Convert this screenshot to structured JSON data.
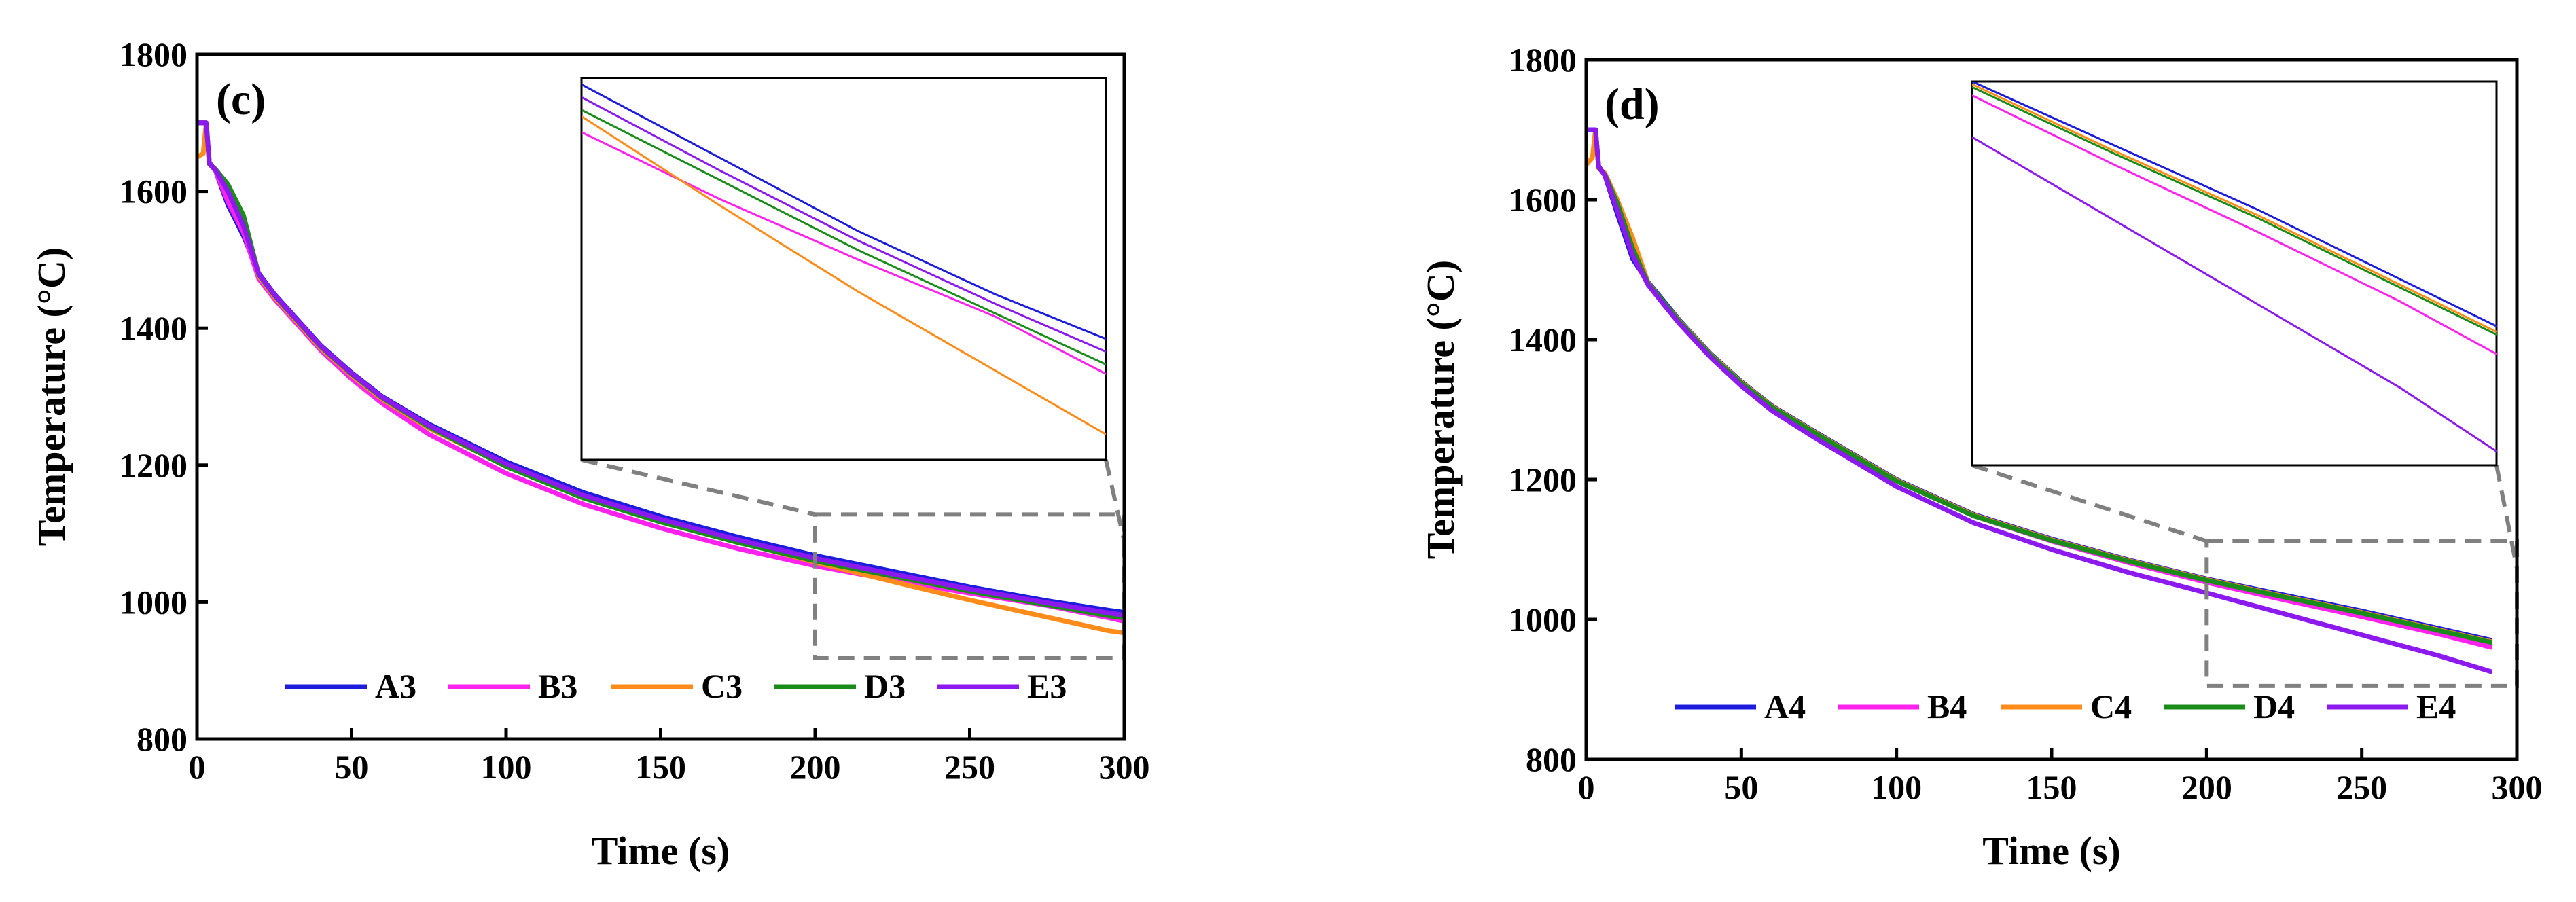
{
  "figure": {
    "chart_data": [
      {
        "type": "line",
        "panel_label": "(c)",
        "title": "",
        "xlabel": "Time (s)",
        "ylabel": "Temperature (°C)",
        "xlim": [
          0,
          300
        ],
        "ylim": [
          800,
          1800
        ],
        "xticks": [
          0,
          50,
          100,
          150,
          200,
          250,
          300
        ],
        "yticks": [
          800,
          1000,
          1200,
          1400,
          1600,
          1800
        ],
        "zoom_box": {
          "x": [
            200,
            300
          ],
          "y": [
            918,
            1128
          ]
        },
        "inset_view": {
          "x": [
            200,
            295
          ],
          "y": [
            950,
            1070
          ]
        },
        "x": [
          0,
          2,
          3,
          4,
          6,
          10,
          15,
          20,
          25,
          30,
          40,
          50,
          60,
          75,
          100,
          125,
          150,
          175,
          200,
          225,
          250,
          275,
          295,
          300
        ],
        "series": [
          {
            "name": "A3",
            "color": "#1c1cdc",
            "values": [
              1700,
              1700,
              1700,
              1642,
              1630,
              1580,
              1535,
              1480,
              1450,
              1425,
              1375,
              1335,
              1300,
              1260,
              1205,
              1160,
              1125,
              1095,
              1068,
              1045,
              1022,
              1002,
              988,
              985
            ]
          },
          {
            "name": "B3",
            "color": "#ff22ee",
            "values": [
              1700,
              1700,
              1700,
              1640,
              1630,
              1585,
              1540,
              1472,
              1443,
              1418,
              1368,
              1326,
              1290,
              1245,
              1188,
              1143,
              1108,
              1078,
              1053,
              1032,
              1013,
              995,
              977,
              972
            ]
          },
          {
            "name": "C3",
            "color": "#ff8c1a",
            "values": [
              1650,
              1655,
              1700,
              1640,
              1632,
              1605,
              1560,
              1476,
              1446,
              1421,
              1371,
              1331,
              1296,
              1254,
              1199,
              1153,
              1118,
              1088,
              1058,
              1030,
              1003,
              978,
              958,
              955
            ]
          },
          {
            "name": "D3",
            "color": "#1a8c1a",
            "values": [
              1700,
              1700,
              1700,
              1640,
              1632,
              1610,
              1565,
              1478,
              1448,
              1423,
              1373,
              1333,
              1298,
              1256,
              1198,
              1152,
              1117,
              1087,
              1060,
              1038,
              1016,
              996,
              980,
              977
            ]
          },
          {
            "name": "E3",
            "color": "#8c1aee",
            "values": [
              1700,
              1700,
              1700,
              1641,
              1631,
              1600,
              1550,
              1479,
              1449,
              1424,
              1374,
              1334,
              1299,
              1258,
              1202,
              1156,
              1121,
              1091,
              1064,
              1041,
              1019,
              999,
              984,
              981
            ]
          }
        ]
      },
      {
        "type": "line",
        "panel_label": "(d)",
        "title": "",
        "xlabel": "Time (s)",
        "ylabel": "Temperature (°C)",
        "xlim": [
          0,
          300
        ],
        "ylim": [
          800,
          1800
        ],
        "xticks": [
          0,
          50,
          100,
          150,
          200,
          250,
          300
        ],
        "yticks": [
          800,
          1000,
          1200,
          1400,
          1600,
          1800
        ],
        "zoom_box": {
          "x": [
            200,
            300
          ],
          "y": [
            905,
            1112
          ]
        },
        "inset_view": {
          "x": [
            200,
            292
          ],
          "y": [
            920,
            1058
          ]
        },
        "x": [
          0,
          2,
          3,
          4,
          6,
          10,
          15,
          20,
          25,
          30,
          40,
          50,
          60,
          75,
          100,
          125,
          150,
          175,
          200,
          225,
          250,
          275,
          292
        ],
        "series": [
          {
            "name": "A4",
            "color": "#1c1cdc",
            "values": [
              1700,
              1700,
              1700,
              1648,
              1635,
              1580,
              1515,
              1482,
              1455,
              1428,
              1380,
              1340,
              1305,
              1265,
              1200,
              1150,
              1115,
              1085,
              1058,
              1035,
              1012,
              987,
              970
            ]
          },
          {
            "name": "B4",
            "color": "#ff22ee",
            "values": [
              1700,
              1700,
              1700,
              1646,
              1636,
              1590,
              1525,
              1480,
              1452,
              1425,
              1378,
              1338,
              1303,
              1263,
              1198,
              1148,
              1112,
              1081,
              1053,
              1028,
              1004,
              979,
              960
            ]
          },
          {
            "name": "C4",
            "color": "#ff8c1a",
            "values": [
              1650,
              1660,
              1700,
              1645,
              1638,
              1600,
              1545,
              1481,
              1453,
              1427,
              1379,
              1339,
              1304,
              1264,
              1199,
              1149,
              1114,
              1084,
              1057,
              1033,
              1010,
              985,
              968
            ]
          },
          {
            "name": "D4",
            "color": "#1a8c1a",
            "values": [
              1700,
              1700,
              1700,
              1646,
              1636,
              1595,
              1530,
              1480,
              1453,
              1426,
              1378,
              1338,
              1303,
              1263,
              1198,
              1148,
              1113,
              1083,
              1056,
              1032,
              1009,
              984,
              967
            ]
          },
          {
            "name": "E4",
            "color": "#8c1aee",
            "values": [
              1700,
              1700,
              1700,
              1647,
              1635,
              1585,
              1520,
              1478,
              1450,
              1423,
              1375,
              1334,
              1298,
              1256,
              1190,
              1138,
              1100,
              1067,
              1038,
              1008,
              978,
              948,
              925
            ]
          }
        ]
      }
    ]
  }
}
